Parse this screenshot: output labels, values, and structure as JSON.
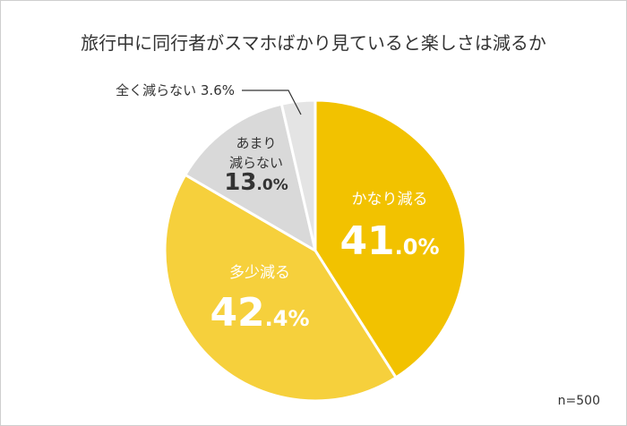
{
  "chart_data": {
    "type": "pie",
    "title": "旅行中に同行者がスマホばかり見ていると楽しさは減るか",
    "note": "n=500",
    "slices": [
      {
        "label": "かなり減る",
        "value": 41.0,
        "int": "41",
        "dec": ".0%",
        "color": "#F2C200",
        "text_color": "#ffffff"
      },
      {
        "label": "多少減る",
        "value": 42.4,
        "int": "42",
        "dec": ".4%",
        "color": "#F6D03C",
        "text_color": "#ffffff"
      },
      {
        "label": "あまり\n減らない",
        "value": 13.0,
        "int": "13",
        "dec": ".0%",
        "color": "#D9D9D9",
        "text_color": "#333333"
      },
      {
        "label": "全く減らない",
        "value": 3.6,
        "display": "3.6%",
        "color": "#E4E4E4",
        "text_color": "#333333"
      }
    ]
  }
}
